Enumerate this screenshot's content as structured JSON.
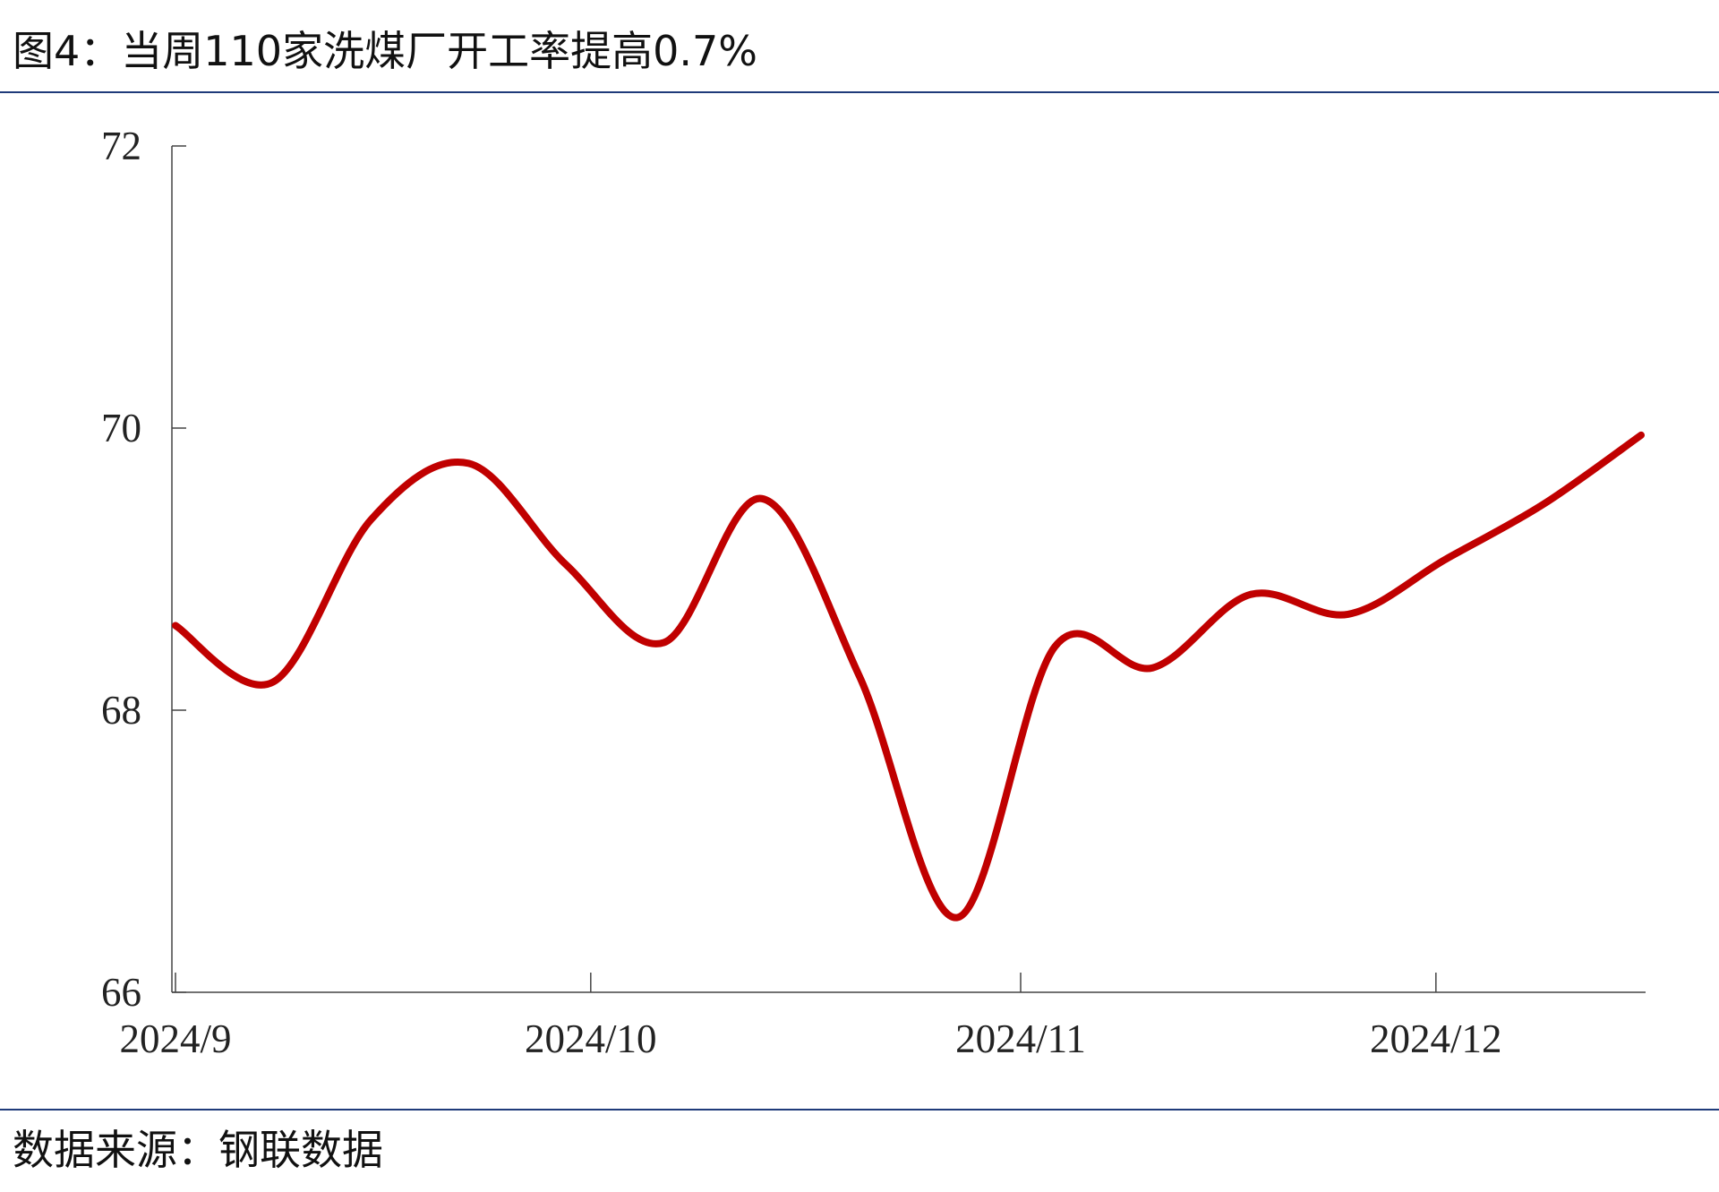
{
  "title": "图4：当周110家洗煤厂开工率提高0.7%",
  "source": "数据来源：钢联数据",
  "chart_data": {
    "type": "line",
    "series": [
      {
        "color": "#c00000",
        "values": [
          68.6,
          68.2,
          69.35,
          69.75,
          69.03,
          68.48,
          69.5,
          68.24,
          66.53,
          68.45,
          68.3,
          68.82,
          68.68,
          69.07,
          69.46,
          69.95
        ]
      }
    ],
    "xlim": [
      0,
      15
    ],
    "xticks": [
      {
        "value": 0,
        "label": "2024/9"
      },
      {
        "value": 4.25,
        "label": "2024/10"
      },
      {
        "value": 8.65,
        "label": "2024/11"
      },
      {
        "value": 12.9,
        "label": "2024/12"
      }
    ],
    "ylim": [
      66,
      72
    ],
    "yticks": [
      66,
      68,
      70,
      72
    ],
    "grid": false
  }
}
